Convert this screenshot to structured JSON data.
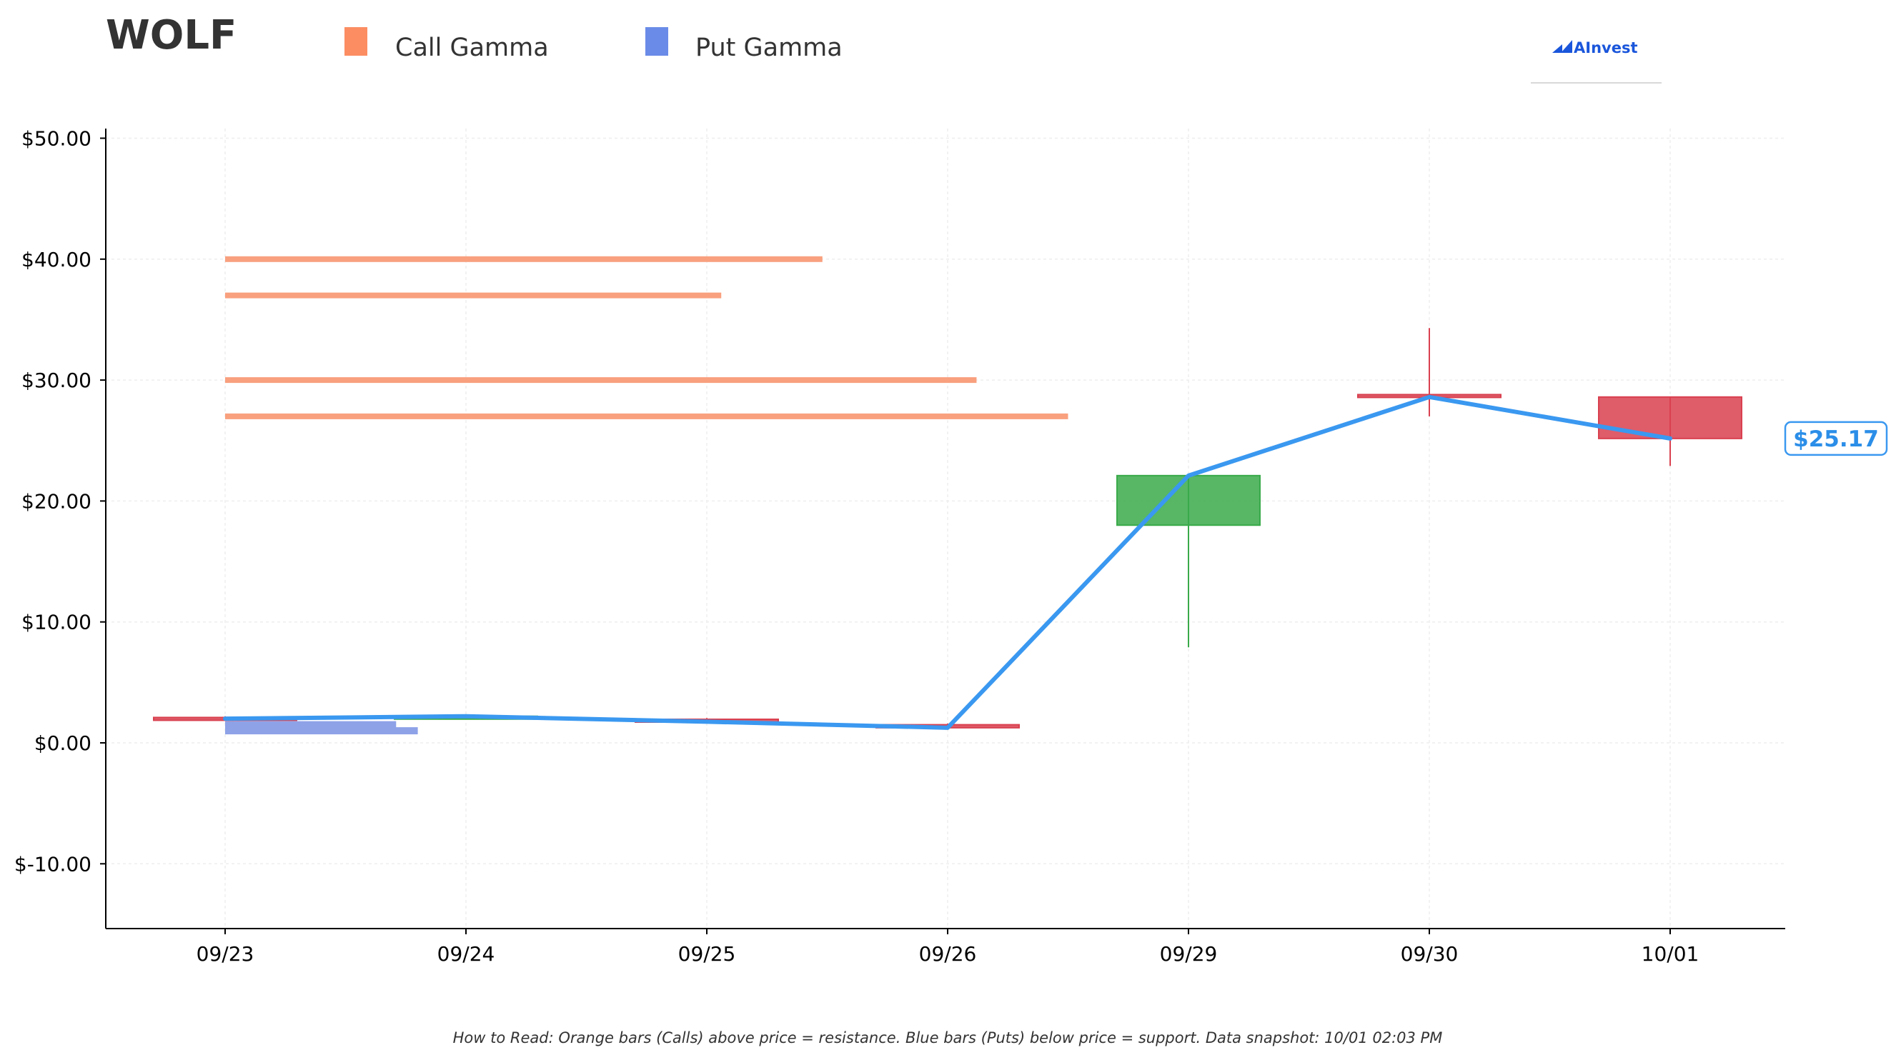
{
  "header": {
    "ticker": "WOLF",
    "logo_text": "AInvest"
  },
  "legend": [
    {
      "label": "Call Gamma",
      "color": "#fc8d62"
    },
    {
      "label": "Put Gamma",
      "color": "#6a8be8"
    }
  ],
  "footnote": "How to Read: Orange bars (Calls) above price = resistance. Blue bars (Puts) below price = support. Data snapshot: 10/01 02:03 PM",
  "chart_data": {
    "type": "candlestick",
    "title": "WOLF",
    "x_categories": [
      "09/23",
      "09/24",
      "09/25",
      "09/26",
      "09/29",
      "09/30",
      "10/01"
    ],
    "ylim": [
      -15.3,
      50.8
    ],
    "y_ticks": [
      -10,
      0,
      10,
      20,
      30,
      40,
      50
    ],
    "y_tick_labels": [
      "$-10.00",
      "$0.00",
      "$10.00",
      "$20.00",
      "$30.00",
      "$40.00",
      "$50.00"
    ],
    "grid": true,
    "legend_position": "top-left",
    "colors": {
      "up": "#3aaa4a",
      "down": "#d9404f",
      "close_line": "#3a98f0",
      "call": "#f9a07e",
      "put": "#8ea2e8"
    },
    "candles": [
      {
        "date": "09/23",
        "open": 2.1,
        "high": 2.2,
        "low": 1.9,
        "close": 2.0
      },
      {
        "date": "09/24",
        "open": 2.2,
        "high": 2.3,
        "low": 2.1,
        "close": 2.2
      },
      {
        "date": "09/25",
        "open": 1.95,
        "high": 2.05,
        "low": 1.7,
        "close": 1.75
      },
      {
        "date": "09/26",
        "open": 1.5,
        "high": 1.6,
        "low": 1.15,
        "close": 1.25
      },
      {
        "date": "09/29",
        "open": 18.0,
        "high": 22.1,
        "low": 7.9,
        "close": 22.1
      },
      {
        "date": "09/30",
        "open": 28.8,
        "high": 34.3,
        "low": 27.0,
        "close": 28.6
      },
      {
        "date": "10/01",
        "open": 28.6,
        "high": 28.6,
        "low": 22.9,
        "close": 25.17
      }
    ],
    "close_series": [
      2.0,
      2.2,
      1.75,
      1.25,
      22.1,
      28.6,
      25.17
    ],
    "call_gamma": [
      {
        "strike": 40,
        "start": "09/23",
        "end_x": 2.48
      },
      {
        "strike": 37,
        "start": "09/23",
        "end_x": 2.06
      },
      {
        "strike": 30,
        "start": "09/23",
        "end_x": 3.12
      },
      {
        "strike": 27,
        "start": "09/23",
        "end_x": 3.5
      }
    ],
    "put_gamma": [
      {
        "strike": 1.5,
        "start": "09/23",
        "end_x": 0.71
      },
      {
        "strike": 1.0,
        "start": "09/23",
        "end_x": 0.8
      }
    ],
    "last_price": 25.17,
    "last_price_label": "$25.17"
  }
}
